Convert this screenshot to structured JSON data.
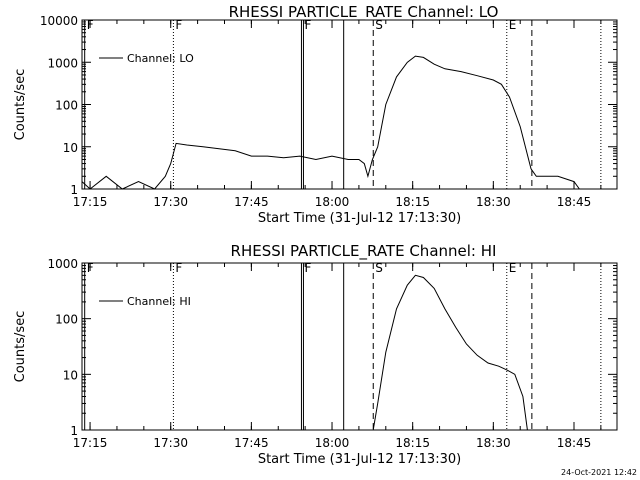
{
  "footer": {
    "timestamp": "24-Oct-2021 12:42"
  },
  "chart_data": [
    {
      "type": "line",
      "title": "RHESSI PARTICLE_RATE Channel: LO",
      "xlabel": "Start Time (31-Jul-12 17:13:30)",
      "ylabel": "Counts/sec",
      "yscale": "log",
      "ylim": [
        1,
        10000
      ],
      "xlim": [
        "17:13:30",
        "18:53:00"
      ],
      "x_ticks": [
        "17:15",
        "17:30",
        "17:45",
        "18:00",
        "18:15",
        "18:30",
        "18:45"
      ],
      "y_ticks": [
        "1",
        "10",
        "100",
        "1000",
        "10000"
      ],
      "legend": {
        "position": "top-left",
        "entries": [
          "Channel: LO"
        ]
      },
      "markers": [
        {
          "label": "F",
          "time": "17:14:00",
          "style": "solid"
        },
        {
          "label": "F",
          "time": "17:30:30",
          "style": "dotted"
        },
        {
          "label": "F",
          "time": "17:54:30",
          "style": "double"
        },
        {
          "label": "",
          "time": "18:02:10",
          "style": "solid"
        },
        {
          "label": "S",
          "time": "18:07:40",
          "style": "dashed"
        },
        {
          "label": "E",
          "time": "18:32:30",
          "style": "dotted"
        },
        {
          "label": "",
          "time": "18:37:10",
          "style": "dashed"
        },
        {
          "label": "",
          "time": "18:50:00",
          "style": "dotted"
        }
      ],
      "series": [
        {
          "name": "Channel: LO",
          "x": [
            "17:13:30",
            "17:15:00",
            "17:18:00",
            "17:21:00",
            "17:24:00",
            "17:27:00",
            "17:29:00",
            "17:30:00",
            "17:31:00",
            "17:33:00",
            "17:36:00",
            "17:39:00",
            "17:42:00",
            "17:45:00",
            "17:48:00",
            "17:51:00",
            "17:54:00",
            "17:57:00",
            "18:00:00",
            "18:03:00",
            "18:05:00",
            "18:06:00",
            "18:06:40",
            "18:07:30",
            "18:08:30",
            "18:10:00",
            "18:12:00",
            "18:14:00",
            "18:15:30",
            "18:17:00",
            "18:19:00",
            "18:21:00",
            "18:24:00",
            "18:27:00",
            "18:30:00",
            "18:31:30",
            "18:33:00",
            "18:35:00",
            "18:37:00",
            "18:38:00",
            "18:42:00",
            "18:45:00",
            "18:46:00"
          ],
          "y": [
            1.5,
            1,
            2,
            1,
            1.5,
            1,
            2,
            4,
            12,
            11,
            10,
            9,
            8,
            6,
            6,
            5.5,
            6,
            5,
            6,
            5,
            5,
            4,
            2,
            5,
            10,
            100,
            450,
            1000,
            1400,
            1300,
            900,
            700,
            600,
            480,
            380,
            300,
            150,
            30,
            3,
            2,
            2,
            1.5,
            1
          ]
        }
      ]
    },
    {
      "type": "line",
      "title": "RHESSI PARTICLE_RATE Channel: HI",
      "xlabel": "Start Time (31-Jul-12 17:13:30)",
      "ylabel": "Counts/sec",
      "yscale": "log",
      "ylim": [
        1,
        1000
      ],
      "xlim": [
        "17:13:30",
        "18:53:00"
      ],
      "x_ticks": [
        "17:15",
        "17:30",
        "17:45",
        "18:00",
        "18:15",
        "18:30",
        "18:45"
      ],
      "y_ticks": [
        "1",
        "10",
        "100",
        "1000"
      ],
      "legend": {
        "position": "top-left",
        "entries": [
          "Channel: HI"
        ]
      },
      "markers": [
        {
          "label": "F",
          "time": "17:14:00",
          "style": "solid"
        },
        {
          "label": "F",
          "time": "17:30:30",
          "style": "dotted"
        },
        {
          "label": "F",
          "time": "17:54:30",
          "style": "double"
        },
        {
          "label": "",
          "time": "18:02:10",
          "style": "solid"
        },
        {
          "label": "S",
          "time": "18:07:40",
          "style": "dashed"
        },
        {
          "label": "E",
          "time": "18:32:30",
          "style": "dotted"
        },
        {
          "label": "",
          "time": "18:37:10",
          "style": "dashed"
        },
        {
          "label": "",
          "time": "18:50:00",
          "style": "dotted"
        }
      ],
      "series": [
        {
          "name": "Channel: HI",
          "x": [
            "18:07:40",
            "18:08:30",
            "18:10:00",
            "18:12:00",
            "18:14:00",
            "18:15:30",
            "18:17:00",
            "18:19:00",
            "18:21:00",
            "18:23:00",
            "18:25:00",
            "18:27:00",
            "18:29:00",
            "18:31:00",
            "18:32:30",
            "18:34:00",
            "18:35:30",
            "18:36:20"
          ],
          "y": [
            1,
            3,
            25,
            150,
            400,
            600,
            550,
            350,
            150,
            70,
            35,
            22,
            16,
            14,
            12,
            10,
            4,
            1
          ]
        }
      ]
    }
  ]
}
